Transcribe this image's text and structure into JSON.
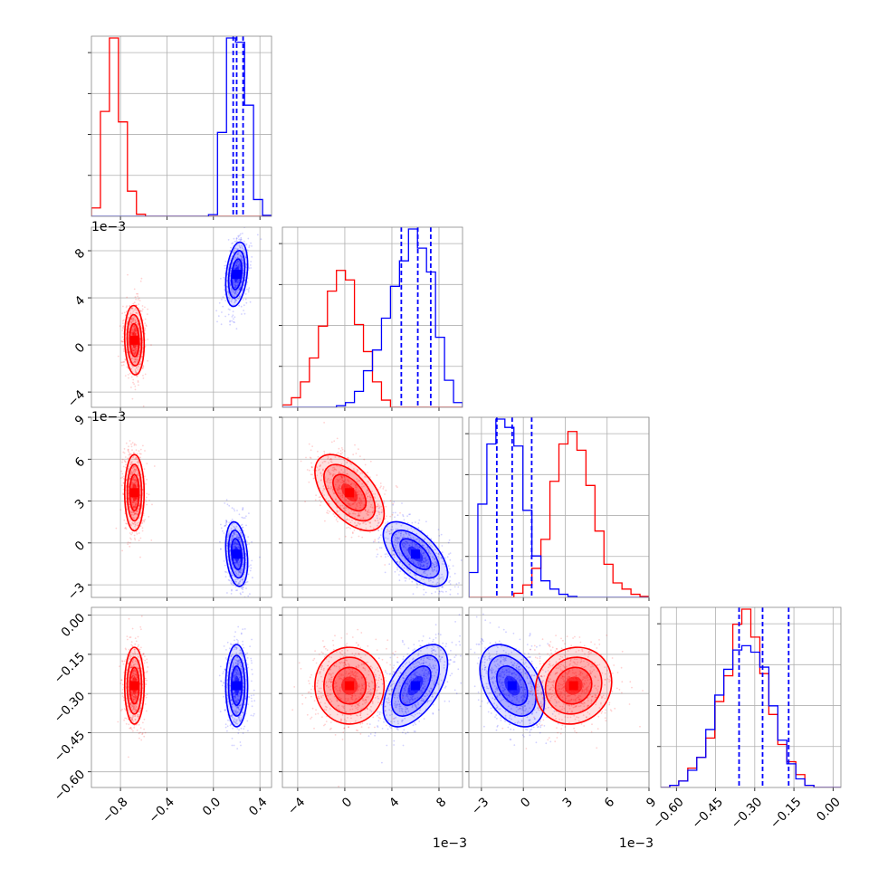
{
  "chart_data": {
    "type": "corner",
    "n_params": 4,
    "grid": true,
    "colors": {
      "blue": "#0000ff",
      "red": "#ff0000"
    },
    "params": [
      {
        "range": [
          -1.05,
          0.5
        ],
        "ticks": [
          -0.8,
          -0.4,
          0.0,
          0.4
        ],
        "tick_labels": [
          "−0.8",
          "−0.4",
          "0.0",
          "0.4"
        ],
        "offset_text": ""
      },
      {
        "range": [
          -5.3,
          10.0
        ],
        "ticks": [
          -4,
          0,
          4,
          8
        ],
        "tick_labels": [
          "−4",
          "0",
          "4",
          "8"
        ],
        "offset_text": "1e−3"
      },
      {
        "range": [
          -3.9,
          9.0
        ],
        "ticks": [
          -3,
          0,
          3,
          6,
          9
        ],
        "tick_labels": [
          "−3",
          "0",
          "3",
          "6",
          "9"
        ],
        "offset_text": "1e−3"
      },
      {
        "range": [
          -0.66,
          0.03
        ],
        "ticks": [
          -0.6,
          -0.45,
          -0.3,
          -0.15,
          0.0
        ],
        "tick_labels": [
          "−0.60",
          "−0.45",
          "−0.30",
          "−0.15",
          "0.00"
        ],
        "offset_text": ""
      }
    ],
    "series": [
      {
        "color": "blue",
        "mean": [
          0.2,
          6.0,
          -0.8,
          -0.27
        ],
        "sd": [
          0.045,
          1.3,
          1.1,
          0.075
        ],
        "corr": {
          "0-1": 0.3,
          "0-2": -0.25,
          "0-3": 0.0,
          "1-2": -0.6,
          "1-3": 0.55,
          "2-3": -0.4
        },
        "quantiles": [
          [
            0.17,
            0.2,
            0.255
          ],
          [
            4.8,
            6.2,
            7.3
          ],
          [
            -1.9,
            -0.8,
            0.6
          ],
          [
            -0.36,
            -0.27,
            -0.17
          ]
        ]
      },
      {
        "color": "red",
        "mean": [
          -0.68,
          0.4,
          3.6,
          -0.27
        ],
        "sd": [
          0.04,
          1.4,
          1.3,
          0.07
        ],
        "corr": {
          "0-1": -0.1,
          "0-2": 0.0,
          "0-3": 0.0,
          "1-2": -0.55,
          "1-3": 0.0,
          "2-3": 0.1
        },
        "quantiles": []
      }
    ],
    "histograms": [
      {
        "bins": 20,
        "blue": [
          0,
          0,
          0,
          0,
          0,
          0,
          0,
          0,
          0,
          0,
          0,
          0,
          0,
          0.08,
          4.0,
          8.5,
          8.3,
          5.3,
          0.8,
          0.05
        ],
        "red": [
          0.4,
          5.0,
          8.5,
          4.5,
          1.2,
          0.1,
          0,
          0,
          0,
          0,
          0,
          0,
          0,
          0,
          0,
          0,
          0,
          0,
          0,
          0
        ]
      },
      {
        "bins": 20,
        "blue": [
          0,
          0,
          0,
          0,
          0,
          0,
          0.1,
          0.3,
          1.0,
          2.3,
          3.6,
          5.6,
          7.6,
          9.2,
          11.2,
          10.0,
          8.5,
          4.4,
          1.7,
          0.3
        ],
        "red": [
          0.15,
          0.6,
          1.6,
          3.1,
          5.1,
          7.3,
          8.6,
          8.0,
          5.2,
          3.5,
          1.6,
          0.45,
          0,
          0,
          0,
          0,
          0,
          0,
          0,
          0
        ]
      },
      {
        "bins": 20,
        "blue": [
          1.2,
          4.5,
          7.4,
          8.6,
          8.2,
          7.3,
          4.2,
          2.0,
          0.8,
          0.4,
          0.15,
          0.05,
          0,
          0,
          0,
          0,
          0,
          0,
          0,
          0
        ],
        "red": [
          0,
          0,
          0,
          0,
          0,
          0.2,
          0.6,
          1.4,
          2.8,
          5.6,
          7.4,
          8.0,
          7.1,
          5.4,
          3.2,
          1.6,
          0.7,
          0.4,
          0.15,
          0.05
        ]
      },
      {
        "bins": 20,
        "blue": [
          0,
          0.1,
          0.3,
          0.8,
          1.4,
          2.7,
          4.3,
          5.5,
          6.4,
          6.6,
          6.3,
          5.6,
          3.8,
          2.2,
          1.1,
          0.4,
          0.1,
          0,
          0,
          0
        ],
        "red": [
          0,
          0.1,
          0.3,
          0.9,
          1.4,
          2.3,
          4.0,
          5.2,
          7.6,
          8.3,
          7.0,
          5.3,
          3.4,
          2.0,
          1.2,
          0.6,
          0.1,
          0,
          0,
          0
        ]
      }
    ]
  }
}
